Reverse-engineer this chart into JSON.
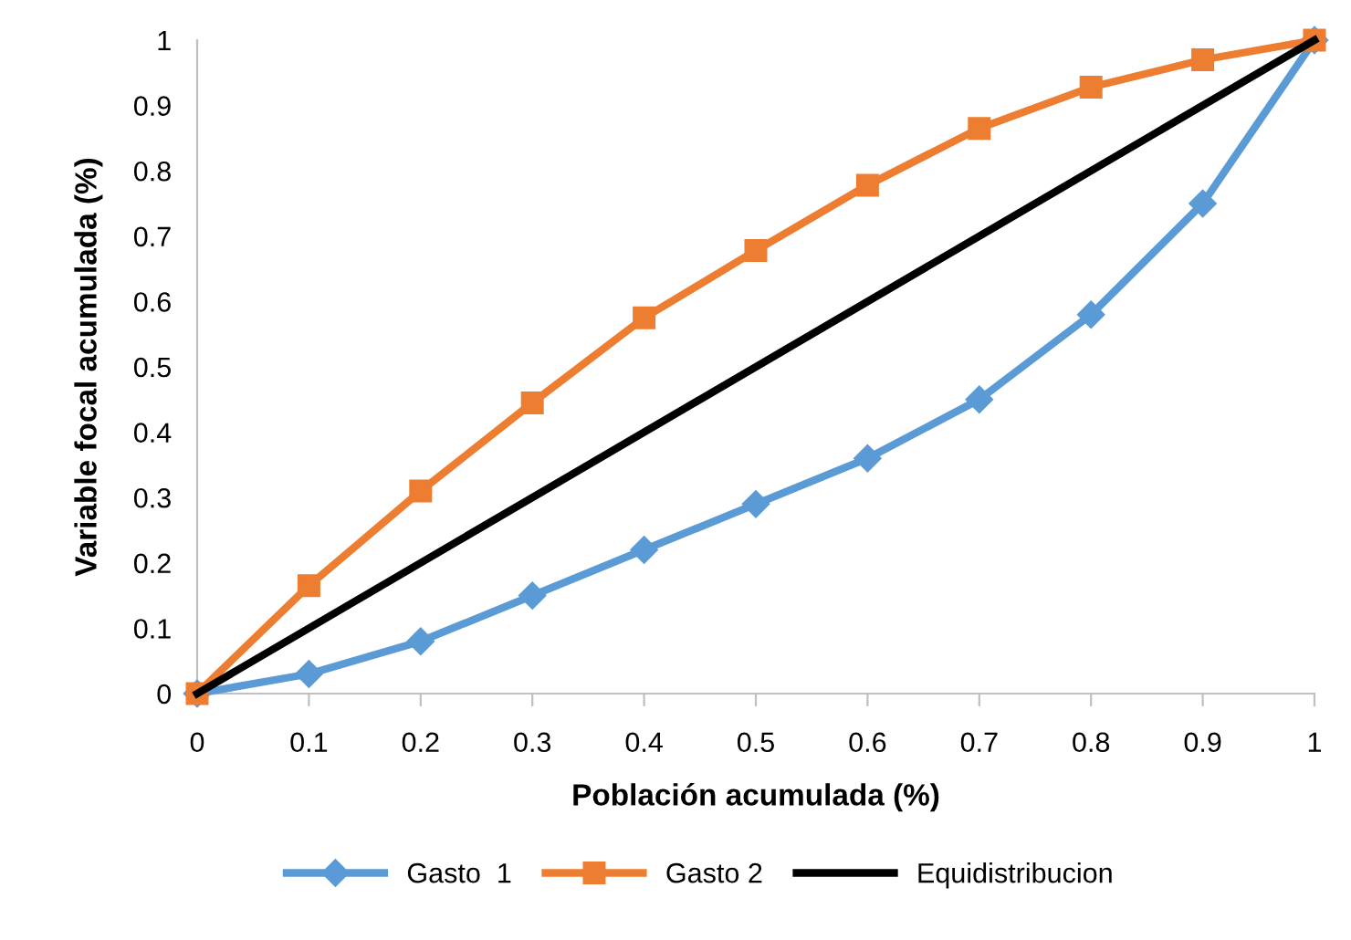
{
  "chart_data": {
    "type": "line",
    "xlabel": "Población acumulada (%)",
    "ylabel": "Variable focal acumulada (%)",
    "x": [
      0,
      0.1,
      0.2,
      0.3,
      0.4,
      0.5,
      0.6,
      0.7,
      0.8,
      0.9,
      1
    ],
    "series": [
      {
        "name": "Gasto  1",
        "color": "#5b9bd5",
        "marker": "diamond",
        "values": [
          0,
          0.03,
          0.08,
          0.15,
          0.22,
          0.29,
          0.36,
          0.45,
          0.58,
          0.75,
          1
        ]
      },
      {
        "name": "Gasto 2",
        "color": "#ed7d31",
        "marker": "square",
        "values": [
          0,
          0.165,
          0.31,
          0.445,
          0.575,
          0.678,
          0.778,
          0.865,
          0.928,
          0.97,
          1
        ]
      },
      {
        "name": "Equidistribucion",
        "color": "#000000",
        "marker": "none",
        "x": [
          0,
          1
        ],
        "values": [
          0,
          1
        ]
      }
    ],
    "xlim": [
      0,
      1
    ],
    "xticks": [
      0,
      0.1,
      0.2,
      0.3,
      0.4,
      0.5,
      0.6,
      0.7,
      0.8,
      0.9,
      1
    ],
    "ylim": [
      0,
      1
    ],
    "yticks": [
      0,
      0.1,
      0.2,
      0.3,
      0.4,
      0.5,
      0.6,
      0.7,
      0.8,
      0.9,
      1
    ],
    "grid": false,
    "legend": "bottom",
    "line_style": "solid"
  }
}
